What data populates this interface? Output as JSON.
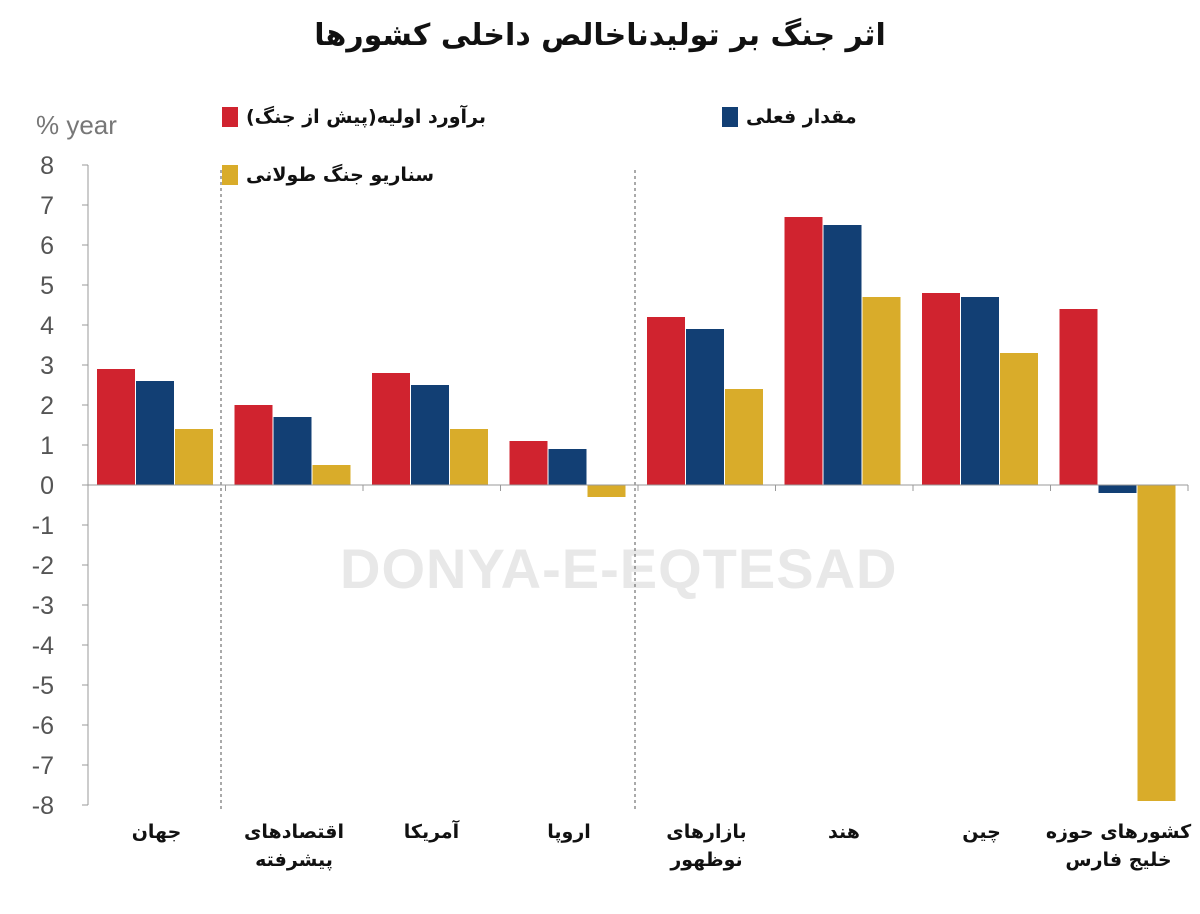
{
  "watermark": "DONYA-E-EQTESAD",
  "chart_data": {
    "type": "bar",
    "title": "اثر جنگ بر تولیدناخالص داخلی کشورها",
    "ylabel": "% year",
    "ylim": [
      -8,
      8
    ],
    "yticks": [
      8,
      7,
      6,
      5,
      4,
      3,
      2,
      1,
      0,
      -1,
      -2,
      -3,
      -4,
      -5,
      -6,
      -7,
      -8
    ],
    "grid": false,
    "legend_position": "top",
    "categories": [
      "جهان",
      "اقتصادهای پیشرفته",
      "آمریکا",
      "اروپا",
      "بازارهای نوظهور",
      "هند",
      "چین",
      "کشورهای حوزه خلیج فارس"
    ],
    "series": [
      {
        "name": "برآورد اولیه(پیش از جنگ)",
        "color": "#d0232f",
        "values": [
          2.9,
          2.0,
          2.8,
          1.1,
          4.2,
          6.7,
          4.8,
          4.4
        ]
      },
      {
        "name": "مقدار فعلی",
        "color": "#123f74",
        "values": [
          2.6,
          1.7,
          2.5,
          0.9,
          3.9,
          6.5,
          4.7,
          -0.2
        ]
      },
      {
        "name": "سناریو جنگ طولانی",
        "color": "#d9ac2a",
        "values": [
          1.4,
          0.5,
          1.4,
          -0.3,
          2.4,
          4.7,
          3.3,
          -7.9
        ]
      }
    ]
  }
}
